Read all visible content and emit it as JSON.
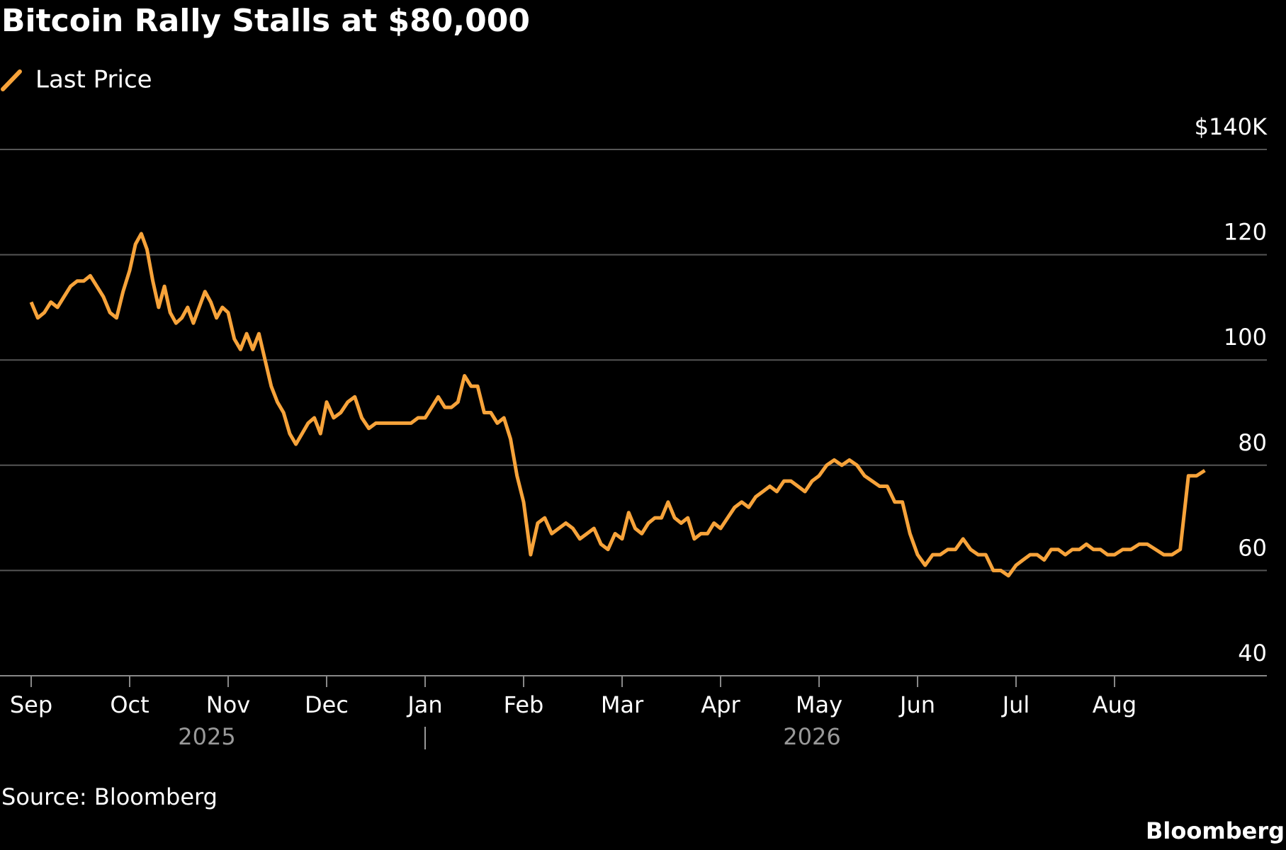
{
  "chart_data": {
    "type": "line",
    "title": "Bitcoin Rally Stalls at $80,000",
    "source": "Source: Bloomberg",
    "brand": "Bloomberg",
    "series": [
      {
        "name": "Last Price",
        "color": "#f7a33a",
        "values": [
          111,
          108,
          109,
          111,
          110,
          112,
          114,
          115,
          115,
          116,
          114,
          112,
          109,
          108,
          113,
          117,
          122,
          124,
          121,
          115,
          110,
          114,
          109,
          107,
          108,
          110,
          107,
          110,
          113,
          111,
          108,
          110,
          109,
          104,
          102,
          105,
          102,
          105,
          100,
          95,
          92,
          90,
          86,
          84,
          86,
          88,
          89,
          86,
          92,
          89,
          90,
          92,
          93,
          89,
          87,
          88,
          88,
          88,
          88,
          88,
          88,
          89,
          89,
          91,
          93,
          91,
          91,
          92,
          97,
          95,
          95,
          90,
          90,
          88,
          89,
          85,
          78,
          73,
          63,
          69,
          70,
          67,
          68,
          69,
          68,
          66,
          67,
          68,
          65,
          64,
          67,
          66,
          71,
          68,
          67,
          69,
          70,
          70,
          73,
          70,
          69,
          70,
          66,
          67,
          67,
          69,
          68,
          70,
          72,
          73,
          72,
          74,
          75,
          76,
          75,
          77,
          77,
          76,
          75,
          77,
          78,
          80,
          81,
          80,
          81,
          80,
          78,
          77,
          76,
          76,
          73,
          73,
          67,
          63,
          61,
          63,
          63,
          64,
          64,
          66,
          64,
          63,
          63,
          60,
          60,
          59,
          61,
          62,
          63,
          63,
          62,
          64,
          64,
          63,
          64,
          64,
          65,
          64,
          64,
          63,
          63,
          64,
          64,
          65,
          65,
          64,
          63,
          63,
          64,
          78,
          78,
          79
        ]
      }
    ],
    "x": [
      "2025-09",
      "2025-09",
      "2025-09",
      "2025-09",
      "2025-09",
      "2025-09",
      "2025-09",
      "2025-09",
      "2025-09",
      "2025-09",
      "2025-09",
      "2025-09",
      "2025-09",
      "2025-09",
      "2025-09",
      "2025-10",
      "2025-10",
      "2025-10",
      "2025-10",
      "2025-10",
      "2025-10",
      "2025-10",
      "2025-10",
      "2025-10",
      "2025-10",
      "2025-10",
      "2025-10",
      "2025-10",
      "2025-10",
      "2025-10",
      "2025-10",
      "2025-10",
      "2025-11",
      "2025-11",
      "2025-11",
      "2025-11",
      "2025-11",
      "2025-11",
      "2025-11",
      "2025-11",
      "2025-11",
      "2025-11",
      "2025-11",
      "2025-11",
      "2025-11",
      "2025-11",
      "2025-11",
      "2025-11",
      "2025-12",
      "2025-12",
      "2025-12",
      "2025-12",
      "2025-12",
      "2025-12",
      "2025-12",
      "2025-12",
      "2025-12",
      "2025-12",
      "2025-12",
      "2025-12",
      "2025-12",
      "2025-12",
      "2026-01",
      "2026-01",
      "2026-01",
      "2026-01",
      "2026-01",
      "2026-01",
      "2026-01",
      "2026-01",
      "2026-01",
      "2026-01",
      "2026-01",
      "2026-01",
      "2026-01",
      "2026-01",
      "2026-01",
      "2026-02",
      "2026-02",
      "2026-02",
      "2026-02",
      "2026-02",
      "2026-02",
      "2026-02",
      "2026-02",
      "2026-02",
      "2026-02",
      "2026-02",
      "2026-02",
      "2026-02",
      "2026-02",
      "2026-03",
      "2026-03",
      "2026-03",
      "2026-03",
      "2026-03",
      "2026-03",
      "2026-03",
      "2026-03",
      "2026-03",
      "2026-03",
      "2026-03",
      "2026-03",
      "2026-03",
      "2026-03",
      "2026-03",
      "2026-04",
      "2026-04",
      "2026-04",
      "2026-04",
      "2026-04",
      "2026-04",
      "2026-04",
      "2026-04",
      "2026-04",
      "2026-04",
      "2026-04",
      "2026-04",
      "2026-04",
      "2026-04",
      "2026-05",
      "2026-05",
      "2026-05",
      "2026-05",
      "2026-05",
      "2026-05",
      "2026-05",
      "2026-05",
      "2026-05",
      "2026-05",
      "2026-05",
      "2026-05",
      "2026-05",
      "2026-06",
      "2026-06",
      "2026-06",
      "2026-06",
      "2026-06",
      "2026-06",
      "2026-06",
      "2026-06",
      "2026-06",
      "2026-06",
      "2026-06",
      "2026-06",
      "2026-06",
      "2026-07",
      "2026-07",
      "2026-07",
      "2026-07",
      "2026-07",
      "2026-07",
      "2026-07",
      "2026-07",
      "2026-07",
      "2026-07",
      "2026-07",
      "2026-07",
      "2026-07",
      "2026-07",
      "2026-08",
      "2026-08",
      "2026-08",
      "2026-08",
      "2026-08",
      "2026-08",
      "2026-08",
      "2026-08",
      "2026-08",
      "2026-08",
      "2026-08",
      "2026-08"
    ],
    "xticks": [
      {
        "value": "2025-09",
        "label": "Sep"
      },
      {
        "value": "2025-10",
        "label": "Oct"
      },
      {
        "value": "2025-11",
        "label": "Nov"
      },
      {
        "value": "2025-12",
        "label": "Dec"
      },
      {
        "value": "2026-01",
        "label": "Jan"
      },
      {
        "value": "2026-02",
        "label": "Feb"
      },
      {
        "value": "2026-03",
        "label": "Mar"
      },
      {
        "value": "2026-04",
        "label": "Apr"
      },
      {
        "value": "2026-05",
        "label": "May"
      },
      {
        "value": "2026-06",
        "label": "Jun"
      },
      {
        "value": "2026-07",
        "label": "Jul"
      },
      {
        "value": "2026-08",
        "label": "Aug"
      }
    ],
    "year_labels": [
      "2025",
      "2026"
    ],
    "ylim": [
      40,
      140
    ],
    "yticks": [
      40,
      60,
      80,
      100,
      120,
      {
        "value": 140,
        "label": "$140K"
      }
    ],
    "grid": true,
    "legend": "top-left"
  }
}
